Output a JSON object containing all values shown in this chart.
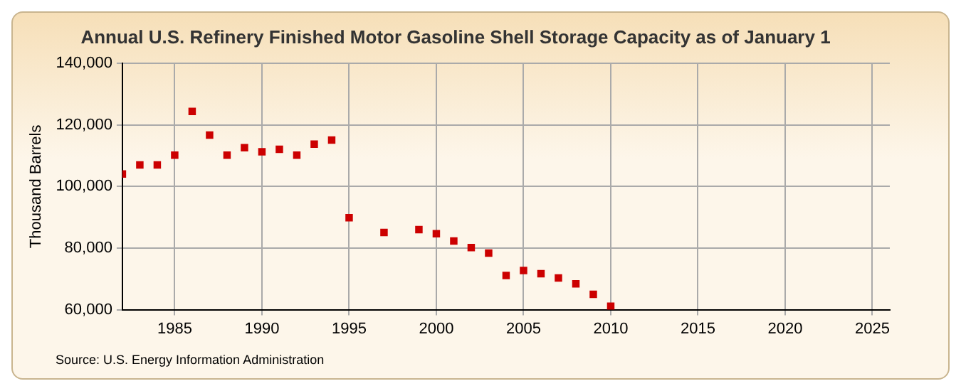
{
  "chart_data": {
    "type": "scatter",
    "title": "Annual U.S. Refinery Finished Motor Gasoline Shell Storage Capacity as of January 1",
    "ylabel": "Thousand Barrels",
    "annotations": [
      "Source: U.S. Energy Information Administration"
    ],
    "x": [
      1982,
      1983,
      1984,
      1985,
      1986,
      1987,
      1988,
      1989,
      1990,
      1991,
      1992,
      1993,
      1994,
      1995,
      1997,
      1999,
      2000,
      2001,
      2002,
      2003,
      2004,
      2005,
      2006,
      2007,
      2008,
      2009,
      2010
    ],
    "series": [
      {
        "color": "#cc0000",
        "values": [
          104100,
          107000,
          107000,
          110200,
          124400,
          116700,
          110200,
          112600,
          111300,
          112100,
          110200,
          113800,
          115100,
          89900,
          85100,
          86000,
          84700,
          82300,
          80200,
          78400,
          71100,
          72700,
          71700,
          70300,
          68400,
          65000,
          61100
        ]
      }
    ],
    "xlim": [
      1982,
      2026
    ],
    "xticks": [
      1985,
      1990,
      1995,
      2000,
      2005,
      2010,
      2015,
      2020,
      2025
    ],
    "ylim": [
      60000,
      140000
    ],
    "yticks": [
      {
        "value": 60000,
        "label": "60,000"
      },
      {
        "value": 80000,
        "label": "80,000"
      },
      {
        "value": 100000,
        "label": "100,000"
      },
      {
        "value": 120000,
        "label": "120,000"
      },
      {
        "value": 140000,
        "label": "140,000"
      }
    ],
    "grid": true,
    "legend": false,
    "marker": "square"
  }
}
